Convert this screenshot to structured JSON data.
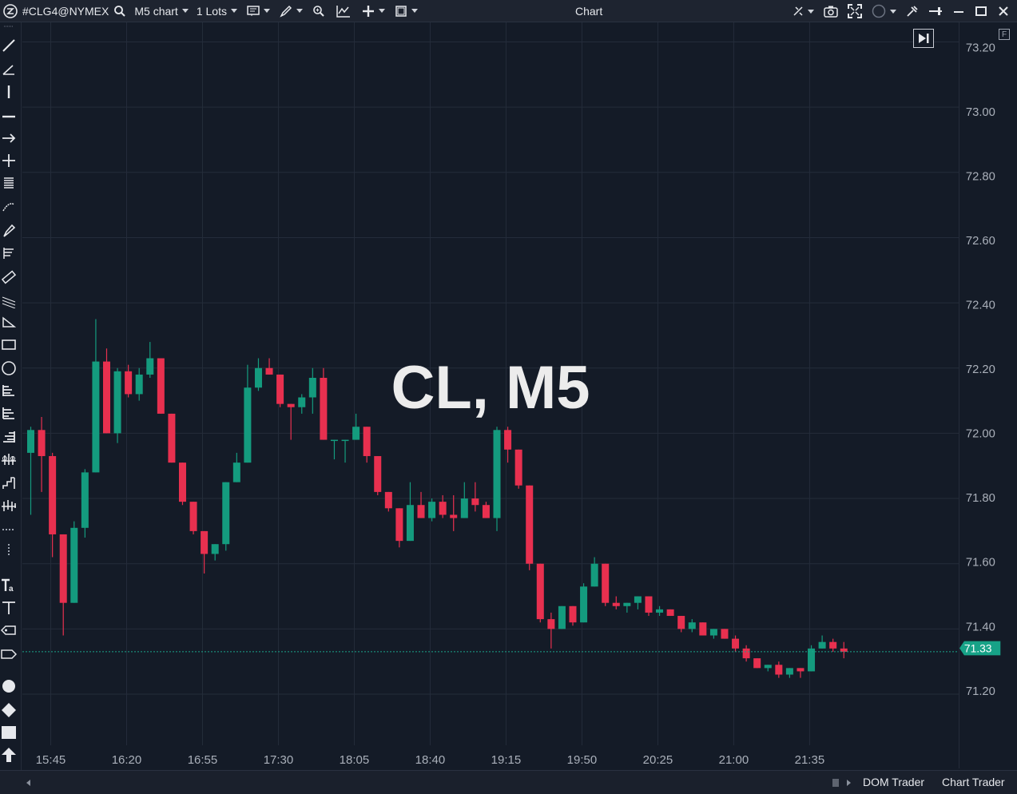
{
  "toolbar": {
    "symbol": "#CLG4@NYMEX",
    "timeframe": "M5 chart",
    "lots": "1 Lots",
    "window_title": "Chart"
  },
  "chart_data": {
    "type": "candlestick",
    "title": "CL, M5",
    "y_ticks": [
      73.2,
      73.0,
      72.8,
      72.6,
      72.4,
      72.2,
      72.0,
      71.8,
      71.6,
      71.4,
      71.2
    ],
    "x_ticks": [
      "15:45",
      "16:20",
      "16:55",
      "17:30",
      "18:05",
      "18:40",
      "19:15",
      "19:50",
      "20:25",
      "21:00",
      "21:35"
    ],
    "ylim": [
      71.08,
      73.26
    ],
    "last_price": "71.33",
    "colors": {
      "up": "#149b7e",
      "down": "#e8304f",
      "background": "#141b27",
      "grid": "#242c3a"
    },
    "candles": [
      [
        71.94,
        72.02,
        71.75,
        72.01
      ],
      [
        72.01,
        72.05,
        71.82,
        71.93
      ],
      [
        71.93,
        71.94,
        71.62,
        71.69
      ],
      [
        71.69,
        71.69,
        71.38,
        71.48
      ],
      [
        71.48,
        71.73,
        71.48,
        71.71
      ],
      [
        71.71,
        71.89,
        71.68,
        71.88
      ],
      [
        71.88,
        72.35,
        71.88,
        72.22
      ],
      [
        72.22,
        72.26,
        72.0,
        72.0
      ],
      [
        72.0,
        72.2,
        71.97,
        72.19
      ],
      [
        72.19,
        72.21,
        72.11,
        72.12
      ],
      [
        72.12,
        72.2,
        72.1,
        72.18
      ],
      [
        72.18,
        72.28,
        72.17,
        72.23
      ],
      [
        72.23,
        72.23,
        72.06,
        72.06
      ],
      [
        72.06,
        72.06,
        71.91,
        71.91
      ],
      [
        71.91,
        71.91,
        71.78,
        71.79
      ],
      [
        71.79,
        71.79,
        71.69,
        71.7
      ],
      [
        71.7,
        71.7,
        71.57,
        71.63
      ],
      [
        71.63,
        71.66,
        71.61,
        71.66
      ],
      [
        71.66,
        71.85,
        71.64,
        71.85
      ],
      [
        71.85,
        71.94,
        71.85,
        71.91
      ],
      [
        71.91,
        72.21,
        71.91,
        72.14
      ],
      [
        72.14,
        72.23,
        72.13,
        72.2
      ],
      [
        72.2,
        72.23,
        72.18,
        72.18
      ],
      [
        72.18,
        72.18,
        72.08,
        72.09
      ],
      [
        72.09,
        72.09,
        71.98,
        72.08
      ],
      [
        72.08,
        72.12,
        72.06,
        72.11
      ],
      [
        72.11,
        72.2,
        72.06,
        72.17
      ],
      [
        72.17,
        72.2,
        71.98,
        71.98
      ],
      [
        71.98,
        71.98,
        71.92,
        71.98
      ],
      [
        71.98,
        71.98,
        71.91,
        71.98
      ],
      [
        71.98,
        72.06,
        71.98,
        72.02
      ],
      [
        72.02,
        72.02,
        71.91,
        71.93
      ],
      [
        71.93,
        71.93,
        71.81,
        71.82
      ],
      [
        71.82,
        71.82,
        71.76,
        71.77
      ],
      [
        71.77,
        71.77,
        71.65,
        71.67
      ],
      [
        71.67,
        71.85,
        71.67,
        71.78
      ],
      [
        71.78,
        71.82,
        71.74,
        71.74
      ],
      [
        71.74,
        71.8,
        71.73,
        71.79
      ],
      [
        71.79,
        71.81,
        71.74,
        71.75
      ],
      [
        71.75,
        71.81,
        71.7,
        71.74
      ],
      [
        71.74,
        71.85,
        71.74,
        71.8
      ],
      [
        71.8,
        71.85,
        71.76,
        71.78
      ],
      [
        71.78,
        71.79,
        71.74,
        71.74
      ],
      [
        71.74,
        72.02,
        71.7,
        72.01
      ],
      [
        72.01,
        72.02,
        71.91,
        71.95
      ],
      [
        71.95,
        71.95,
        71.83,
        71.84
      ],
      [
        71.84,
        71.84,
        71.58,
        71.6
      ],
      [
        71.6,
        71.6,
        71.42,
        71.43
      ],
      [
        71.43,
        71.45,
        71.34,
        71.4
      ],
      [
        71.4,
        71.47,
        71.4,
        71.47
      ],
      [
        71.47,
        71.47,
        71.41,
        71.42
      ],
      [
        71.42,
        71.54,
        71.42,
        71.53
      ],
      [
        71.53,
        71.62,
        71.53,
        71.6
      ],
      [
        71.6,
        71.6,
        71.47,
        71.48
      ],
      [
        71.48,
        71.5,
        71.46,
        71.47
      ],
      [
        71.47,
        71.48,
        71.45,
        71.48
      ],
      [
        71.48,
        71.5,
        71.46,
        71.5
      ],
      [
        71.5,
        71.5,
        71.44,
        71.45
      ],
      [
        71.45,
        71.47,
        71.44,
        71.46
      ],
      [
        71.46,
        71.46,
        71.44,
        71.44
      ],
      [
        71.44,
        71.44,
        71.39,
        71.4
      ],
      [
        71.4,
        71.43,
        71.39,
        71.42
      ],
      [
        71.42,
        71.42,
        71.38,
        71.38
      ],
      [
        71.38,
        71.4,
        71.37,
        71.4
      ],
      [
        71.4,
        71.4,
        71.37,
        71.37
      ],
      [
        71.37,
        71.38,
        71.33,
        71.34
      ],
      [
        71.34,
        71.35,
        71.3,
        71.31
      ],
      [
        71.31,
        71.31,
        71.28,
        71.28
      ],
      [
        71.28,
        71.29,
        71.27,
        71.29
      ],
      [
        71.29,
        71.3,
        71.25,
        71.26
      ],
      [
        71.26,
        71.28,
        71.25,
        71.28
      ],
      [
        71.28,
        71.28,
        71.25,
        71.27
      ],
      [
        71.27,
        71.35,
        71.27,
        71.34
      ],
      [
        71.34,
        71.38,
        71.34,
        71.36
      ],
      [
        71.36,
        71.37,
        71.33,
        71.34
      ],
      [
        71.34,
        71.36,
        71.31,
        71.33
      ]
    ]
  },
  "footer": {
    "tab_dom": "DOM Trader",
    "tab_chart": "Chart Trader"
  }
}
